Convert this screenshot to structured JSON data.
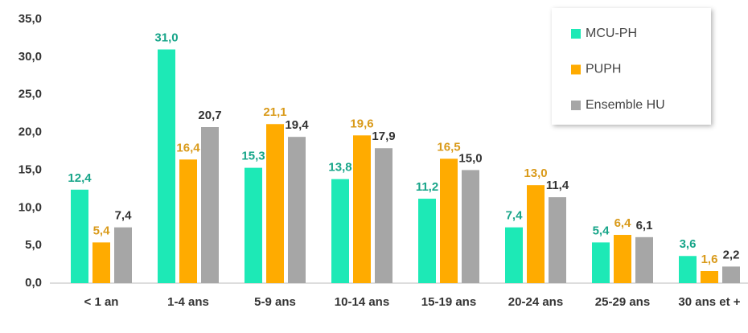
{
  "chart_data": {
    "type": "bar",
    "categories": [
      "< 1 an",
      "1-4 ans",
      "5-9 ans",
      "10-14 ans",
      "15-19 ans",
      "20-24 ans",
      "25-29 ans",
      "30 ans et +"
    ],
    "series": [
      {
        "name": "MCU-PH",
        "color": "#1de9b6",
        "label_color": "#17a589",
        "values": [
          12.4,
          31.0,
          15.3,
          13.8,
          11.2,
          7.4,
          5.4,
          3.6
        ],
        "value_labels": [
          "12,4",
          "31,0",
          "15,3",
          "13,8",
          "11,2",
          "7,4",
          "5,4",
          "3,6"
        ]
      },
      {
        "name": "PUPH",
        "color": "#ffab00",
        "label_color": "#d99a1a",
        "values": [
          5.4,
          16.4,
          21.1,
          19.6,
          16.5,
          13.0,
          6.4,
          1.6
        ],
        "value_labels": [
          "5,4",
          "16,4",
          "21,1",
          "19,6",
          "16,5",
          "13,0",
          "6,4",
          "1,6"
        ]
      },
      {
        "name": "Ensemble HU",
        "color": "#a6a6a6",
        "label_color": "#333333",
        "values": [
          7.4,
          20.7,
          19.4,
          17.9,
          15.0,
          11.4,
          6.1,
          2.2
        ],
        "value_labels": [
          "7,4",
          "20,7",
          "19,4",
          "17,9",
          "15,0",
          "11,4",
          "6,1",
          "2,2"
        ]
      }
    ],
    "ylim": [
      0,
      35
    ],
    "yticks": [
      {
        "value": 0,
        "label": "0,0"
      },
      {
        "value": 5,
        "label": "5,0"
      },
      {
        "value": 10,
        "label": "10,0"
      },
      {
        "value": 15,
        "label": "15,0"
      },
      {
        "value": 20,
        "label": "20,0"
      },
      {
        "value": 25,
        "label": "25,0"
      },
      {
        "value": 30,
        "label": "30,0"
      },
      {
        "value": 35,
        "label": "35,0"
      }
    ],
    "grid": false,
    "legend": "top-right"
  }
}
